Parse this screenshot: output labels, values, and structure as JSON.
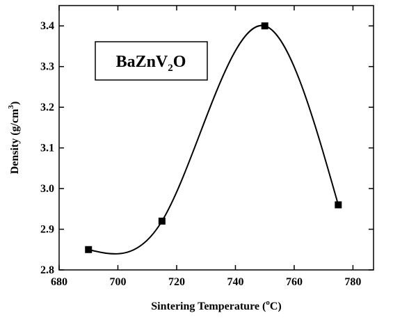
{
  "chart_data": {
    "type": "line",
    "markers": "square",
    "smooth": true,
    "annotation": [
      "BaZnV",
      "2",
      "O"
    ],
    "xlabel": [
      "Sintering Temperature (",
      "o",
      "C)"
    ],
    "ylabel": [
      "Density (g/cm",
      "3",
      ")"
    ],
    "x": [
      690,
      715,
      750,
      775
    ],
    "series": [
      {
        "color": "#000000",
        "values": [
          2.85,
          2.92,
          3.4,
          2.96
        ]
      }
    ],
    "xlim": [
      680,
      787
    ],
    "xticks": [
      680,
      700,
      720,
      740,
      760,
      780
    ],
    "ylim": [
      2.8,
      3.45
    ],
    "yticks": [
      2.8,
      2.9,
      {
        "value": 3.0,
        "label": "3.0"
      },
      3.1,
      3.2,
      3.3,
      3.4
    ]
  }
}
